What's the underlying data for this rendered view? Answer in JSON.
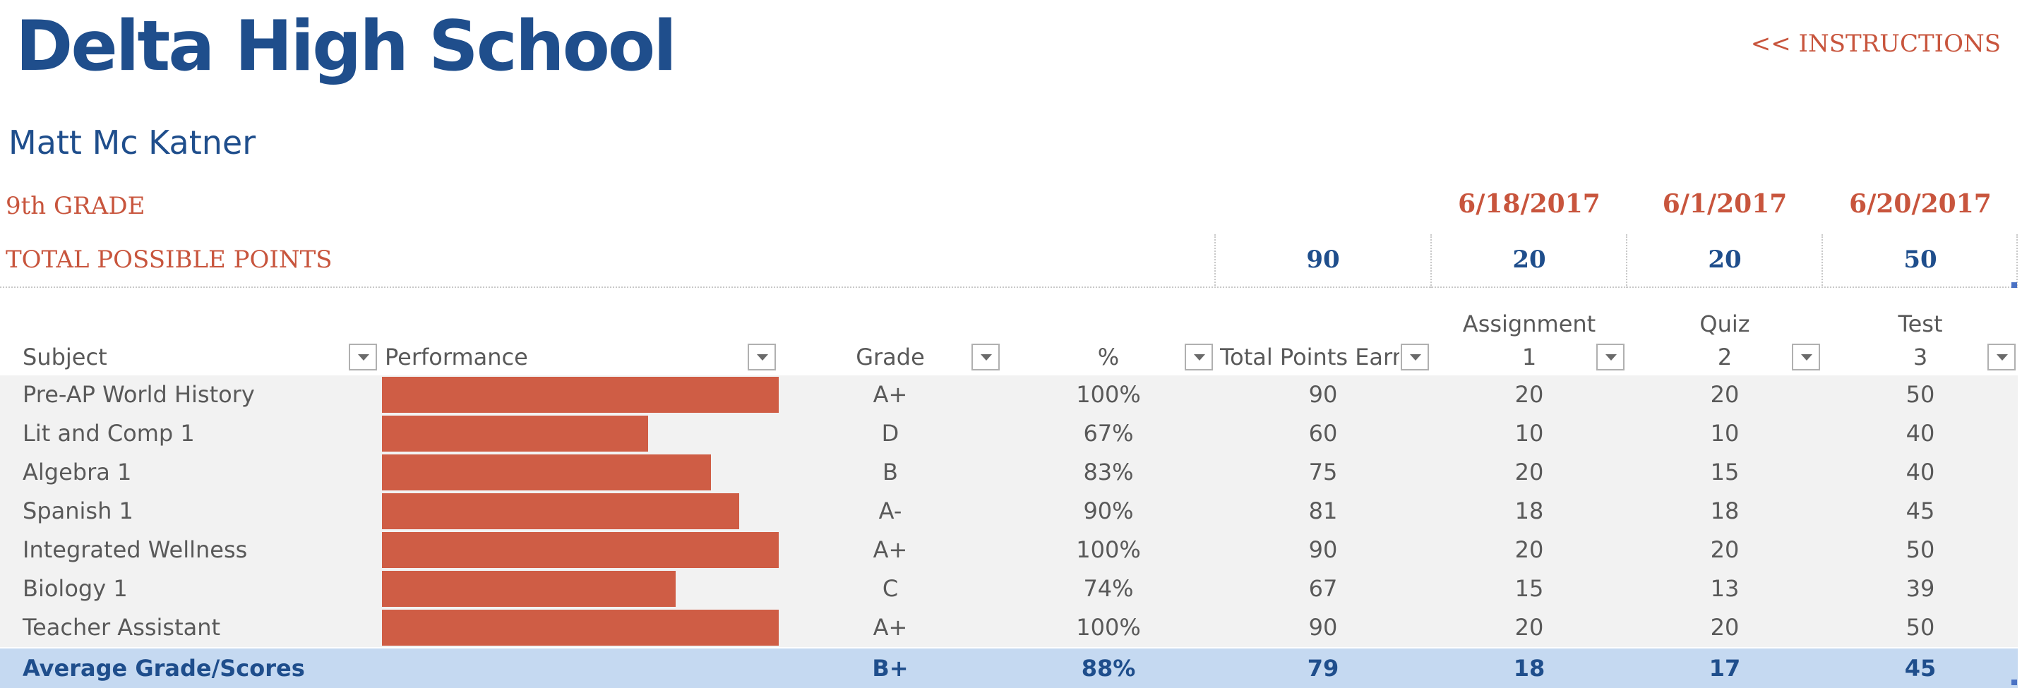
{
  "header": {
    "school": "Delta High School",
    "instructions_link": "<<  INSTRUCTIONS",
    "student_name": "Matt Mc Katner",
    "grade_level": "9th GRADE",
    "total_possible_label": "TOTAL POSSIBLE POINTS",
    "total_possible_points": "90",
    "dates": [
      "6/18/2017",
      "6/1/2017",
      "6/20/2017"
    ],
    "possible_points": [
      "20",
      "20",
      "50"
    ]
  },
  "columns": {
    "subject": "Subject",
    "performance": "Performance",
    "grade": "Grade",
    "percent": "%",
    "total": "Total Points Earn",
    "assignment_name": "Assignment",
    "assignment_num": "1",
    "quiz_name": "Quiz",
    "quiz_num": "2",
    "test_name": "Test",
    "test_num": "3"
  },
  "rows": [
    {
      "subject": "Pre-AP World History",
      "performance": 1.0,
      "grade": "A+",
      "percent": "100%",
      "total": "90",
      "assignment": "20",
      "quiz": "20",
      "test": "50"
    },
    {
      "subject": "Lit and Comp 1",
      "performance": 0.67,
      "grade": "D",
      "percent": "67%",
      "total": "60",
      "assignment": "10",
      "quiz": "10",
      "test": "40"
    },
    {
      "subject": "Algebra 1",
      "performance": 0.83,
      "grade": "B",
      "percent": "83%",
      "total": "75",
      "assignment": "20",
      "quiz": "15",
      "test": "40"
    },
    {
      "subject": "Spanish 1",
      "performance": 0.9,
      "grade": "A-",
      "percent": "90%",
      "total": "81",
      "assignment": "18",
      "quiz": "18",
      "test": "45"
    },
    {
      "subject": "Integrated Wellness",
      "performance": 1.0,
      "grade": "A+",
      "percent": "100%",
      "total": "90",
      "assignment": "20",
      "quiz": "20",
      "test": "50"
    },
    {
      "subject": "Biology 1",
      "performance": 0.74,
      "grade": "C",
      "percent": "74%",
      "total": "67",
      "assignment": "15",
      "quiz": "13",
      "test": "39"
    },
    {
      "subject": "Teacher Assistant",
      "performance": 1.0,
      "grade": "A+",
      "percent": "100%",
      "total": "90",
      "assignment": "20",
      "quiz": "20",
      "test": "50"
    }
  ],
  "average": {
    "label": "Average Grade/Scores",
    "grade": "B+",
    "percent": "88%",
    "total": "79",
    "assignment": "18",
    "quiz": "17",
    "test": "45"
  },
  "colors": {
    "title": "#1f4e8c",
    "accent": "#c8553d",
    "bar": "#cf5d45",
    "avg_row": "#c5d9f1"
  }
}
